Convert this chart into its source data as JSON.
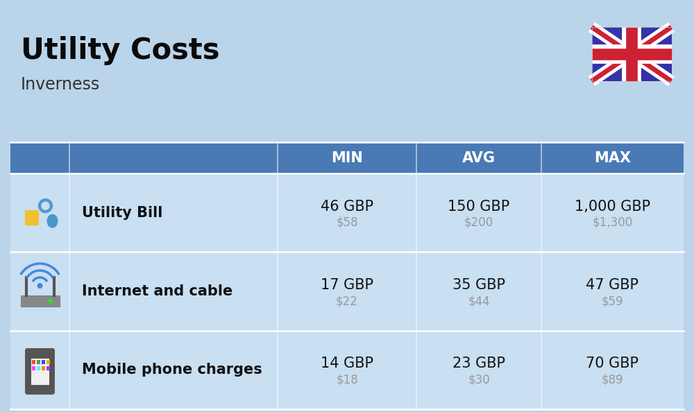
{
  "title": "Utility Costs",
  "subtitle": "Inverness",
  "background_color": "#bad4ea",
  "header_color": "#4a7ab5",
  "header_text_color": "#ffffff",
  "row_color": "#c9dff2",
  "divider_color": "#ffffff",
  "col_headers": [
    "MIN",
    "AVG",
    "MAX"
  ],
  "rows": [
    {
      "label": "Utility Bill",
      "min_gbp": "46 GBP",
      "min_usd": "$58",
      "avg_gbp": "150 GBP",
      "avg_usd": "$200",
      "max_gbp": "1,000 GBP",
      "max_usd": "$1,300",
      "icon": "utility"
    },
    {
      "label": "Internet and cable",
      "min_gbp": "17 GBP",
      "min_usd": "$22",
      "avg_gbp": "35 GBP",
      "avg_usd": "$44",
      "max_gbp": "47 GBP",
      "max_usd": "$59",
      "icon": "internet"
    },
    {
      "label": "Mobile phone charges",
      "min_gbp": "14 GBP",
      "min_usd": "$18",
      "avg_gbp": "23 GBP",
      "avg_usd": "$30",
      "max_gbp": "70 GBP",
      "max_usd": "$89",
      "icon": "mobile"
    }
  ],
  "text_color_gbp": "#111111",
  "text_color_usd": "#999999",
  "title_fontsize": 30,
  "subtitle_fontsize": 17,
  "header_fontsize": 15,
  "label_fontsize": 15,
  "value_fontsize": 15,
  "usd_fontsize": 12
}
